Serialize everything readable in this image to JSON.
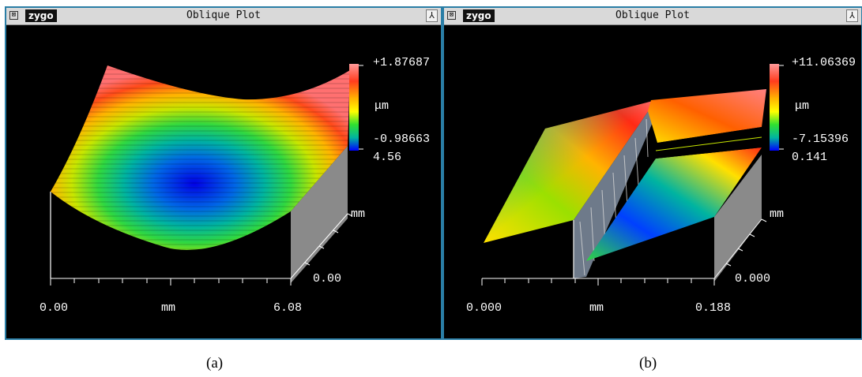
{
  "panels": [
    {
      "window_title": "Oblique Plot",
      "logo": "zygo",
      "close_icon": "⊠",
      "pin_icon": "⅄",
      "z_max": "+1.87687",
      "z_unit": "μm",
      "z_min": "-0.98663",
      "y_max": "4.56",
      "y_unit": "mm",
      "y_min": "0.00",
      "x_min": "0.00",
      "x_unit": "mm",
      "x_max": "6.08",
      "caption": "(a)"
    },
    {
      "window_title": "Oblique Plot",
      "logo": "zygo",
      "close_icon": "⊠",
      "pin_icon": "⅄",
      "z_max": "+11.06369",
      "z_unit": "μm",
      "z_min": "-7.15396",
      "y_max": "0.141",
      "y_unit": "mm",
      "y_min": "0.000",
      "x_min": "0.000",
      "x_unit": "mm",
      "x_max": "0.188",
      "caption": "(b)"
    }
  ],
  "colors": {
    "frame_border": "#2a7ea6",
    "plot_bg": "#000000",
    "colorbar": [
      "#ff9a9a",
      "#ff3c1e",
      "#ffb400",
      "#ffff00",
      "#30e030",
      "#00b4a0",
      "#0000ff"
    ]
  }
}
